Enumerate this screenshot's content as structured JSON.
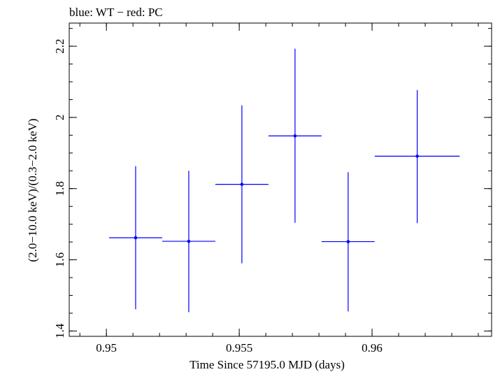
{
  "chart_data": {
    "type": "scatter",
    "title": "blue: WT − red: PC",
    "xlabel": "Time Since 57195.0 MJD (days)",
    "ylabel": "(2.0−10.0 keV)/(0.3−2.0 keV)",
    "xlim": [
      0.9486,
      0.9645
    ],
    "ylim": [
      1.385,
      2.265
    ],
    "xticks": [
      {
        "value": 0.95,
        "label": "0.95"
      },
      {
        "value": 0.955,
        "label": "0.955"
      },
      {
        "value": 0.96,
        "label": "0.96"
      }
    ],
    "yticks": [
      {
        "value": 1.4,
        "label": "1.4"
      },
      {
        "value": 1.6,
        "label": "1.6"
      },
      {
        "value": 1.8,
        "label": "1.8"
      },
      {
        "value": 2.0,
        "label": "2"
      },
      {
        "value": 2.2,
        "label": "2.2"
      }
    ],
    "x_minor_step": 0.001,
    "y_minor_step": 0.05,
    "grid": false,
    "series": [
      {
        "color": "#0000ff",
        "points": [
          {
            "x": 0.9511,
            "xlo": 0.9501,
            "xhi": 0.9521,
            "y": 1.662,
            "ylo": 1.461,
            "yhi": 1.863
          },
          {
            "x": 0.9531,
            "xlo": 0.9521,
            "xhi": 0.9541,
            "y": 1.652,
            "ylo": 1.453,
            "yhi": 1.85
          },
          {
            "x": 0.9551,
            "xlo": 0.9541,
            "xhi": 0.9561,
            "y": 1.812,
            "ylo": 1.59,
            "yhi": 2.034
          },
          {
            "x": 0.9571,
            "xlo": 0.9561,
            "xhi": 0.9581,
            "y": 1.948,
            "ylo": 1.704,
            "yhi": 2.193
          },
          {
            "x": 0.9591,
            "xlo": 0.9581,
            "xhi": 0.9601,
            "y": 1.651,
            "ylo": 1.455,
            "yhi": 1.846
          },
          {
            "x": 0.9617,
            "xlo": 0.9601,
            "xhi": 0.9633,
            "y": 1.891,
            "ylo": 1.703,
            "yhi": 2.077
          }
        ]
      }
    ]
  }
}
